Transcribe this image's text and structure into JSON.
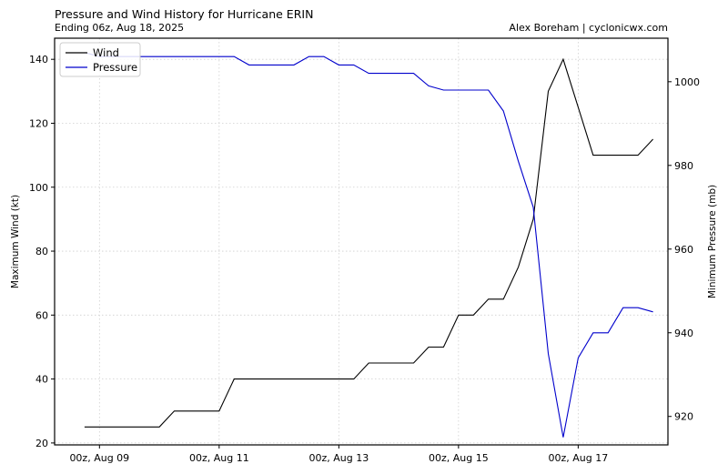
{
  "title": "Pressure and Wind History for Hurricane ERIN",
  "subtitle": "Ending 06z, Aug 18, 2025",
  "credit": "Alex Boreham | cyclonicwx.com",
  "chart_data": {
    "type": "line",
    "ylabel_left": "Maximum Wind (kt)",
    "ylabel_right": "Minimum Pressure (mb)",
    "ylim_left": [
      19.4,
      146.6
    ],
    "ylim_right": [
      913.2,
      1010.4
    ],
    "xlim": [
      "2025-08-08 06:00",
      "2025-08-18 12:00"
    ],
    "x_ticks": [
      "2025-08-09 00:00",
      "2025-08-11 00:00",
      "2025-08-13 00:00",
      "2025-08-15 00:00",
      "2025-08-17 00:00"
    ],
    "x_tick_labels": [
      "00z, Aug 09",
      "00z, Aug 11",
      "00z, Aug 13",
      "00z, Aug 15",
      "00z, Aug 17"
    ],
    "y_ticks_left": [
      20,
      40,
      60,
      80,
      100,
      120,
      140
    ],
    "y_ticks_right": [
      920,
      940,
      960,
      980,
      1000
    ],
    "grid": true,
    "legend_position": "top-left",
    "x": [
      "2025-08-08 18:00",
      "2025-08-09 00:00",
      "2025-08-09 06:00",
      "2025-08-09 12:00",
      "2025-08-09 18:00",
      "2025-08-10 00:00",
      "2025-08-10 06:00",
      "2025-08-10 12:00",
      "2025-08-10 18:00",
      "2025-08-11 00:00",
      "2025-08-11 06:00",
      "2025-08-11 12:00",
      "2025-08-11 18:00",
      "2025-08-12 00:00",
      "2025-08-12 06:00",
      "2025-08-12 12:00",
      "2025-08-12 18:00",
      "2025-08-13 00:00",
      "2025-08-13 06:00",
      "2025-08-13 12:00",
      "2025-08-13 18:00",
      "2025-08-14 00:00",
      "2025-08-14 06:00",
      "2025-08-14 12:00",
      "2025-08-14 18:00",
      "2025-08-15 00:00",
      "2025-08-15 06:00",
      "2025-08-15 12:00",
      "2025-08-15 18:00",
      "2025-08-16 00:00",
      "2025-08-16 06:00",
      "2025-08-16 12:00",
      "2025-08-16 18:00",
      "2025-08-17 00:00",
      "2025-08-17 06:00",
      "2025-08-17 12:00",
      "2025-08-17 18:00",
      "2025-08-18 00:00",
      "2025-08-18 06:00"
    ],
    "series": [
      {
        "name": "Wind",
        "axis": "left",
        "color": "#000000",
        "values": [
          25,
          25,
          25,
          25,
          25,
          25,
          30,
          30,
          30,
          30,
          40,
          40,
          40,
          40,
          40,
          40,
          40,
          40,
          40,
          45,
          45,
          45,
          45,
          50,
          50,
          60,
          60,
          65,
          65,
          75,
          90,
          130,
          140,
          125,
          110,
          110,
          110,
          110,
          115
        ]
      },
      {
        "name": "Pressure",
        "axis": "right",
        "color": "#0000cc",
        "values": [
          1007,
          1006,
          1006,
          1006,
          1006,
          1006,
          1006,
          1006,
          1006,
          1006,
          1006,
          1004,
          1004,
          1004,
          1004,
          1006,
          1006,
          1004,
          1004,
          1002,
          1002,
          1002,
          1002,
          999,
          998,
          998,
          998,
          998,
          993,
          981,
          970,
          935,
          915,
          934,
          940,
          940,
          946,
          946,
          945
        ]
      }
    ]
  }
}
